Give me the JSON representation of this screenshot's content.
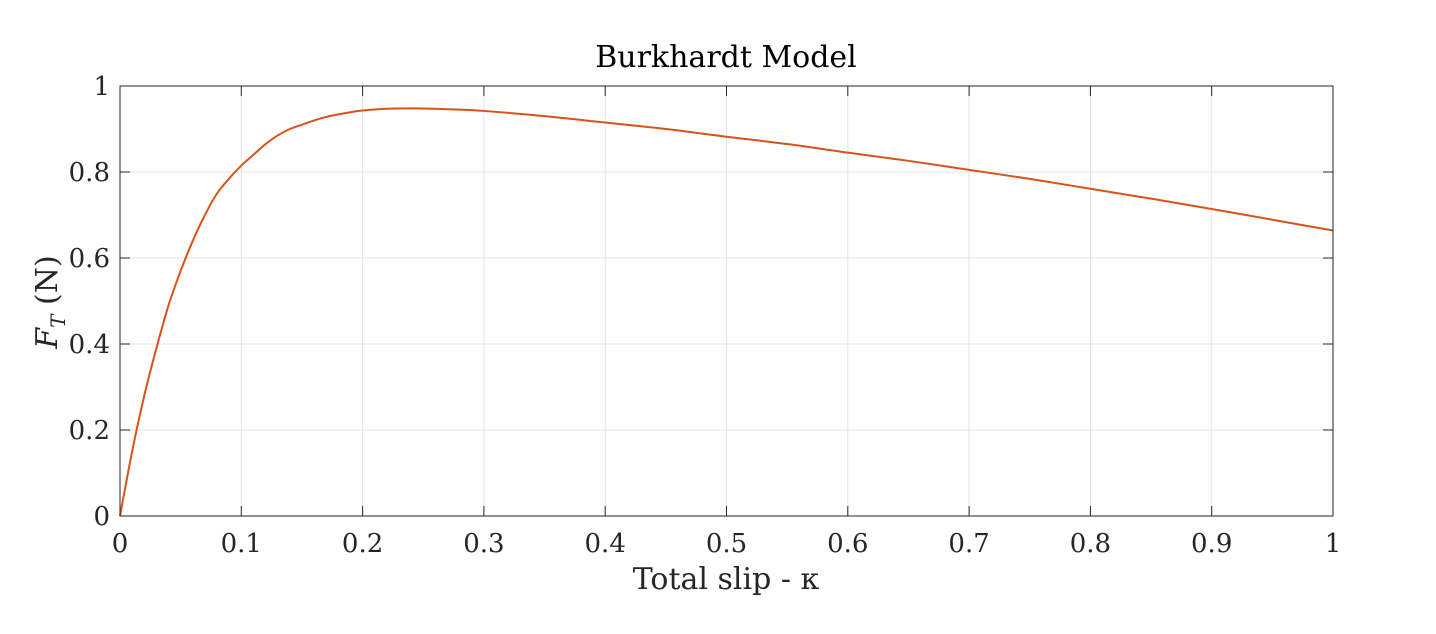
{
  "chart_data": {
    "type": "line",
    "title": "Burkhardt Model",
    "xlabel": "Total slip - κ",
    "ylabel_symbol": "F",
    "ylabel_subscript": "T",
    "ylabel_unit": " (N)",
    "xlim": [
      0,
      1
    ],
    "ylim": [
      0,
      1
    ],
    "xticks": [
      0,
      0.1,
      0.2,
      0.3,
      0.4,
      0.5,
      0.6,
      0.7,
      0.8,
      0.9,
      1
    ],
    "xtick_labels": [
      "0",
      "0.1",
      "0.2",
      "0.3",
      "0.4",
      "0.5",
      "0.6",
      "0.7",
      "0.8",
      "0.9",
      "1"
    ],
    "yticks": [
      0,
      0.2,
      0.4,
      0.6,
      0.8,
      1
    ],
    "ytick_labels": [
      "0",
      "0.2",
      "0.4",
      "0.6",
      "0.8",
      "1"
    ],
    "grid": true,
    "series": [
      {
        "color": "#D95319",
        "x": [
          0,
          0.01,
          0.02,
          0.03,
          0.04,
          0.05,
          0.06,
          0.07,
          0.08,
          0.09,
          0.1,
          0.11,
          0.12,
          0.13,
          0.14,
          0.15,
          0.16,
          0.17,
          0.18,
          0.19,
          0.2,
          0.22,
          0.24,
          0.26,
          0.28,
          0.3,
          0.35,
          0.4,
          0.45,
          0.5,
          0.55,
          0.6,
          0.65,
          0.7,
          0.75,
          0.8,
          0.85,
          0.9,
          0.95,
          1.0
        ],
        "y": [
          0,
          0.15,
          0.28,
          0.39,
          0.49,
          0.57,
          0.64,
          0.7,
          0.75,
          0.785,
          0.815,
          0.84,
          0.865,
          0.885,
          0.9,
          0.91,
          0.92,
          0.928,
          0.934,
          0.939,
          0.943,
          0.947,
          0.948,
          0.947,
          0.945,
          0.942,
          0.93,
          0.915,
          0.9,
          0.882,
          0.865,
          0.845,
          0.826,
          0.805,
          0.784,
          0.761,
          0.738,
          0.714,
          0.689,
          0.664
        ]
      }
    ]
  }
}
